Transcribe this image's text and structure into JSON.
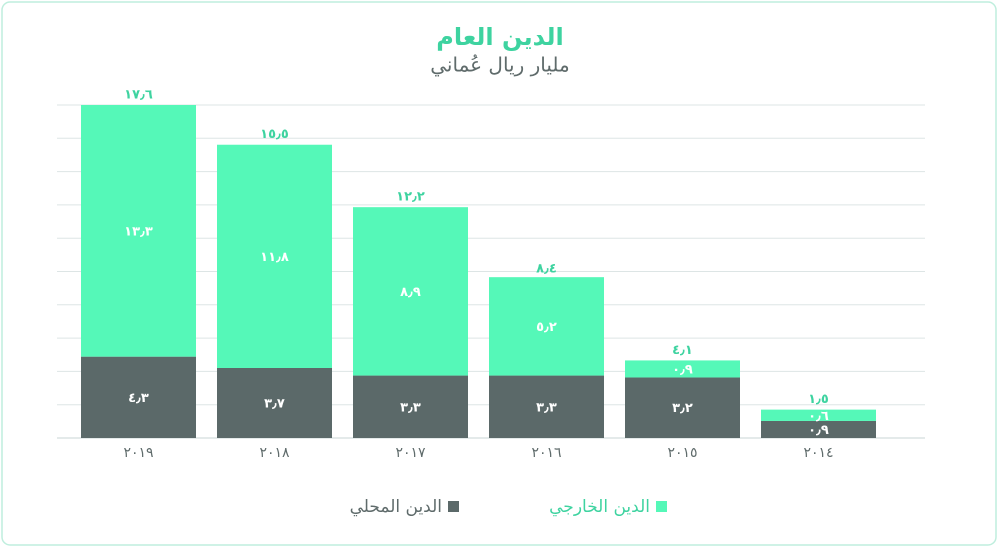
{
  "chart_data": {
    "type": "stacked_bar",
    "title": "الدين العام",
    "subtitle": "مليار ريال عُماني",
    "categories": [
      "٢٠١٩",
      "٢٠١٨",
      "٢٠١٧",
      "٢٠١٦",
      "٢٠١٥",
      "٢٠١٤"
    ],
    "series": [
      {
        "name": "الدين المحلي",
        "color": "#5b6969",
        "values": [
          4.3,
          3.7,
          3.3,
          3.3,
          3.2,
          0.9
        ],
        "value_labels": [
          "٤٫٣",
          "٣٫٧",
          "٣٫٣",
          "٣٫٣",
          "٣٫٢",
          "٠٫٩"
        ]
      },
      {
        "name": "الدين الخارجي",
        "color": "#55f8b8",
        "values": [
          13.3,
          11.8,
          8.9,
          5.2,
          0.9,
          0.6
        ],
        "value_labels": [
          "١٣٫٣",
          "١١٫٨",
          "٨٫٩",
          "٥٫٢",
          "٠٫٩",
          "٠٫٦"
        ]
      }
    ],
    "totals": [
      17.6,
      15.5,
      12.2,
      8.4,
      4.1,
      1.5
    ],
    "total_labels": [
      "١٧٫٦",
      "١٥٫٥",
      "١٢٫٢",
      "٨٫٤",
      "٤٫١",
      "١٫٥"
    ],
    "ylim": [
      0,
      17.6
    ],
    "yticks": [
      0,
      1.76,
      3.52,
      5.28,
      7.04,
      8.8,
      10.56,
      12.32,
      14.08,
      15.84,
      17.6
    ],
    "grid": true
  }
}
